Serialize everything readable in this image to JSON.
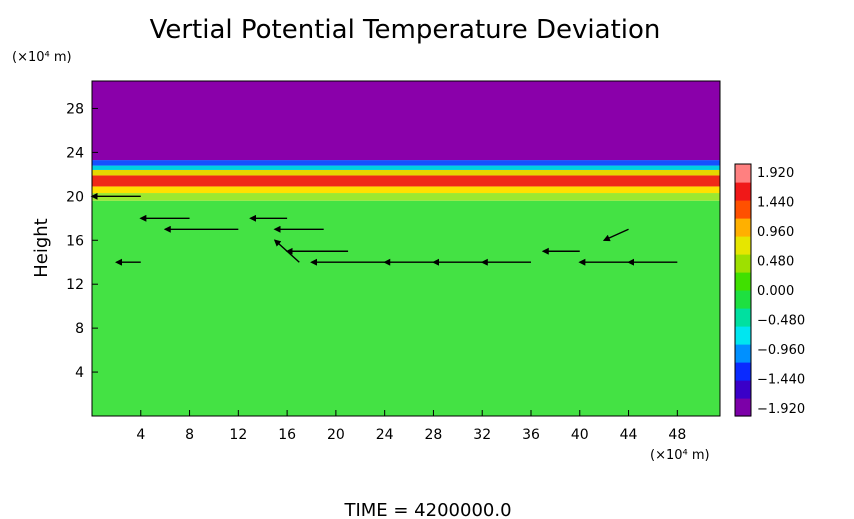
{
  "chart_data": {
    "type": "heatmap",
    "title": "Vertial Potential Temperature Deviation",
    "ylabel": "Height",
    "y_unit": "(×10⁴ m)",
    "x_unit": "(×10⁴ m)",
    "footer": "TIME  =  4200000.0",
    "xlim": [
      0,
      51.5
    ],
    "ylim": [
      0,
      30.5
    ],
    "x_ticks": [
      "4",
      "8",
      "12",
      "16",
      "20",
      "24",
      "28",
      "32",
      "36",
      "40",
      "44",
      "48"
    ],
    "y_ticks": [
      "4",
      "8",
      "12",
      "16",
      "20",
      "24",
      "28"
    ],
    "colorbar": {
      "labels": [
        "1.920",
        "1.440",
        "0.960",
        "0.480",
        "0.000",
        "−0.480",
        "−0.960",
        "−1.440",
        "−1.920"
      ],
      "range": [
        -1.92,
        1.92
      ],
      "colors": [
        "#7c00a8",
        "#3a00c8",
        "#0a2aff",
        "#0090ff",
        "#00e6f0",
        "#00e0a0",
        "#1ee040",
        "#40e000",
        "#9ee000",
        "#e6e600",
        "#ffb000",
        "#ff5000",
        "#f01818",
        "#ff8080"
      ]
    },
    "field_bands": [
      {
        "y0": 0,
        "y1": 19.6,
        "value": 0.05,
        "color": "#44e244"
      },
      {
        "y0": 19.6,
        "y1": 20.3,
        "value": 0.15,
        "color": "#9be830"
      },
      {
        "y0": 20.3,
        "y1": 20.9,
        "value": 0.9,
        "color": "#ffe000"
      },
      {
        "y0": 20.9,
        "y1": 21.9,
        "value": 1.6,
        "color": "#f02a18"
      },
      {
        "y0": 21.9,
        "y1": 22.4,
        "value": 0.6,
        "color": "#e6d800"
      },
      {
        "y0": 22.4,
        "y1": 22.8,
        "value": -0.3,
        "color": "#00d0e0"
      },
      {
        "y0": 22.8,
        "y1": 23.3,
        "value": -1.0,
        "color": "#1450ff"
      },
      {
        "y0": 23.3,
        "y1": 30.5,
        "value": -1.92,
        "color": "#8a00aa"
      }
    ],
    "wind_arrows": [
      {
        "x": 4,
        "y": 20,
        "u": -4,
        "v": 0
      },
      {
        "x": 8,
        "y": 18,
        "u": -4,
        "v": 0
      },
      {
        "x": 12,
        "y": 17,
        "u": -6,
        "v": 0
      },
      {
        "x": 16,
        "y": 18,
        "u": -3,
        "v": 0
      },
      {
        "x": 19,
        "y": 17,
        "u": -4,
        "v": 0
      },
      {
        "x": 17,
        "y": 14,
        "u": -2,
        "v": 2
      },
      {
        "x": 21,
        "y": 15,
        "u": -5,
        "v": 0
      },
      {
        "x": 24,
        "y": 14,
        "u": -6,
        "v": 0
      },
      {
        "x": 28,
        "y": 14,
        "u": -4,
        "v": 0
      },
      {
        "x": 32,
        "y": 14,
        "u": -4,
        "v": 0
      },
      {
        "x": 36,
        "y": 14,
        "u": -4,
        "v": 0
      },
      {
        "x": 40,
        "y": 15,
        "u": -3,
        "v": 0
      },
      {
        "x": 44,
        "y": 14,
        "u": -4,
        "v": 0
      },
      {
        "x": 48,
        "y": 14,
        "u": -4,
        "v": 0
      },
      {
        "x": 4,
        "y": 14,
        "u": -2,
        "v": 0
      },
      {
        "x": 44,
        "y": 17,
        "u": -2,
        "v": -1
      }
    ]
  }
}
